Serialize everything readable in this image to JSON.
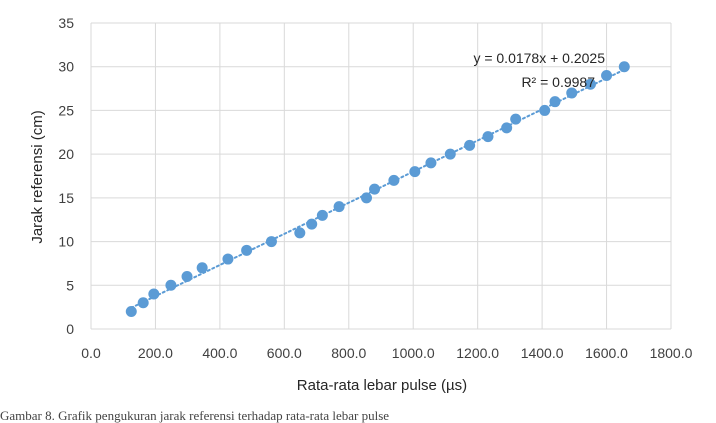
{
  "chart_data": {
    "type": "scatter",
    "xlabel": "Rata-rata lebar pulse (µs)",
    "ylabel": "Jarak referensi (cm)",
    "xlim": [
      0,
      1800
    ],
    "ylim": [
      0,
      35
    ],
    "xticks": [
      "0.0",
      "200.0",
      "400.0",
      "600.0",
      "800.0",
      "1000.0",
      "1200.0",
      "1400.0",
      "1600.0",
      "1800.0"
    ],
    "yticks": [
      "0",
      "5",
      "10",
      "15",
      "20",
      "25",
      "30",
      "35"
    ],
    "grid": true,
    "legend": "none",
    "marker_color": "#5b9bd5",
    "trendline": {
      "type": "linear",
      "style": "dotted",
      "slope": 0.0178,
      "intercept": 0.2025,
      "equation": "y = 0.0178x + 0.2025",
      "r_squared": "R² = 0.9987"
    },
    "series": [
      {
        "x": [
          125,
          162,
          195,
          248,
          298,
          345,
          425,
          483,
          560,
          648,
          685,
          718,
          770,
          855,
          880,
          940,
          1005,
          1055,
          1115,
          1175,
          1232,
          1290,
          1318,
          1408,
          1440,
          1492,
          1550,
          1600,
          1655
        ],
        "y": [
          2,
          3,
          4,
          5,
          6,
          7,
          8,
          9,
          10,
          11,
          12,
          13,
          14,
          15,
          16,
          17,
          18,
          19,
          20,
          21,
          22,
          23,
          24,
          25,
          26,
          27,
          28,
          29,
          30
        ]
      }
    ]
  },
  "caption": "Gambar 8. Grafik pengukuran jarak referensi terhadap rata-rata lebar pulse"
}
